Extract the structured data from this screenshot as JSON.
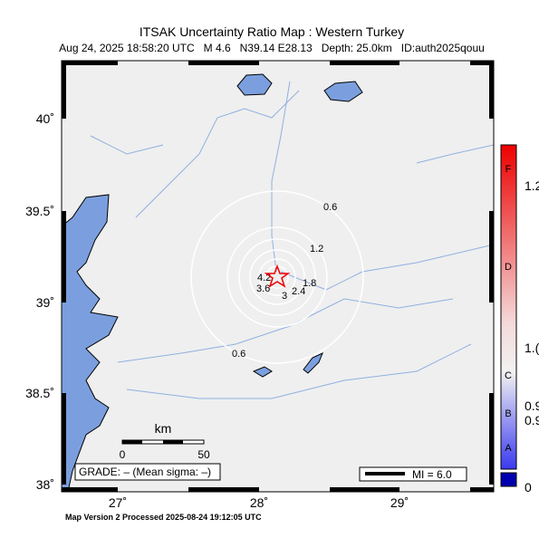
{
  "header": {
    "title": "ITSAK Uncertainty Ratio Map : Western Turkey",
    "subtitle": "Aug 24, 2025 18:58:20 UTC   M 4.6   N39.14 E28.13   Depth: 25.0km   ID:auth2025qouu"
  },
  "map": {
    "lat_labels": [
      "40˚",
      "39.5˚",
      "39˚",
      "38.5˚",
      "38˚"
    ],
    "lon_labels": [
      "27˚",
      "28˚",
      "29˚"
    ],
    "contour_labels": [
      "0.6",
      "1.2",
      "1.8",
      "2.4",
      "3",
      "3.6",
      "4.2",
      "0.6"
    ],
    "scale": {
      "unit": "km",
      "start": "0",
      "end": "50"
    },
    "grade": "GRADE: – (Mean sigma: –)",
    "mi": "MI = 6.0"
  },
  "colorbar": {
    "letters": [
      "F",
      "D",
      "C",
      "B",
      "A"
    ],
    "values": [
      "1.2",
      "1.(",
      "0.9",
      "0.9",
      "0"
    ]
  },
  "footer": "Map Version 2 Processed 2025-08-24 19:12:05 UTC"
}
